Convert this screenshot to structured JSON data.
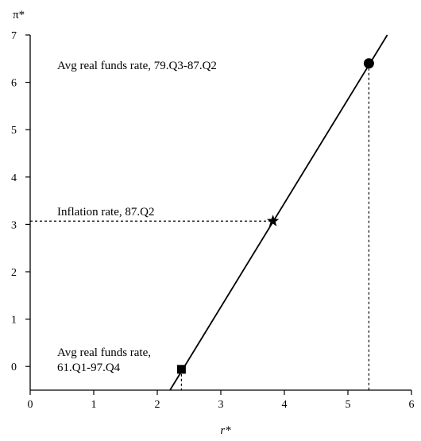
{
  "chart_data": {
    "type": "line",
    "xlabel": "r*",
    "ylabel": "π*",
    "xlim": [
      0,
      6
    ],
    "ylim": [
      -0.5,
      7
    ],
    "xticks": [
      0,
      1,
      2,
      3,
      4,
      5,
      6
    ],
    "yticks": [
      0,
      1,
      2,
      3,
      4,
      5,
      6,
      7
    ],
    "grid": false,
    "line": {
      "x": [
        2.2,
        5.62
      ],
      "y": [
        -0.5,
        7.0
      ]
    },
    "points": [
      {
        "marker": "circle",
        "x": 5.33,
        "y": 6.4,
        "label": "Avg real funds rate, 79.Q3-87.Q2",
        "guide": "vertical"
      },
      {
        "marker": "star",
        "x": 3.82,
        "y": 3.07,
        "label": "Inflation rate, 87.Q2",
        "guide": "horizontal"
      },
      {
        "marker": "square",
        "x": 2.38,
        "y": -0.06,
        "label": "Avg real funds rate,\n61.Q1-97.Q4",
        "guide": "vertical"
      }
    ]
  }
}
